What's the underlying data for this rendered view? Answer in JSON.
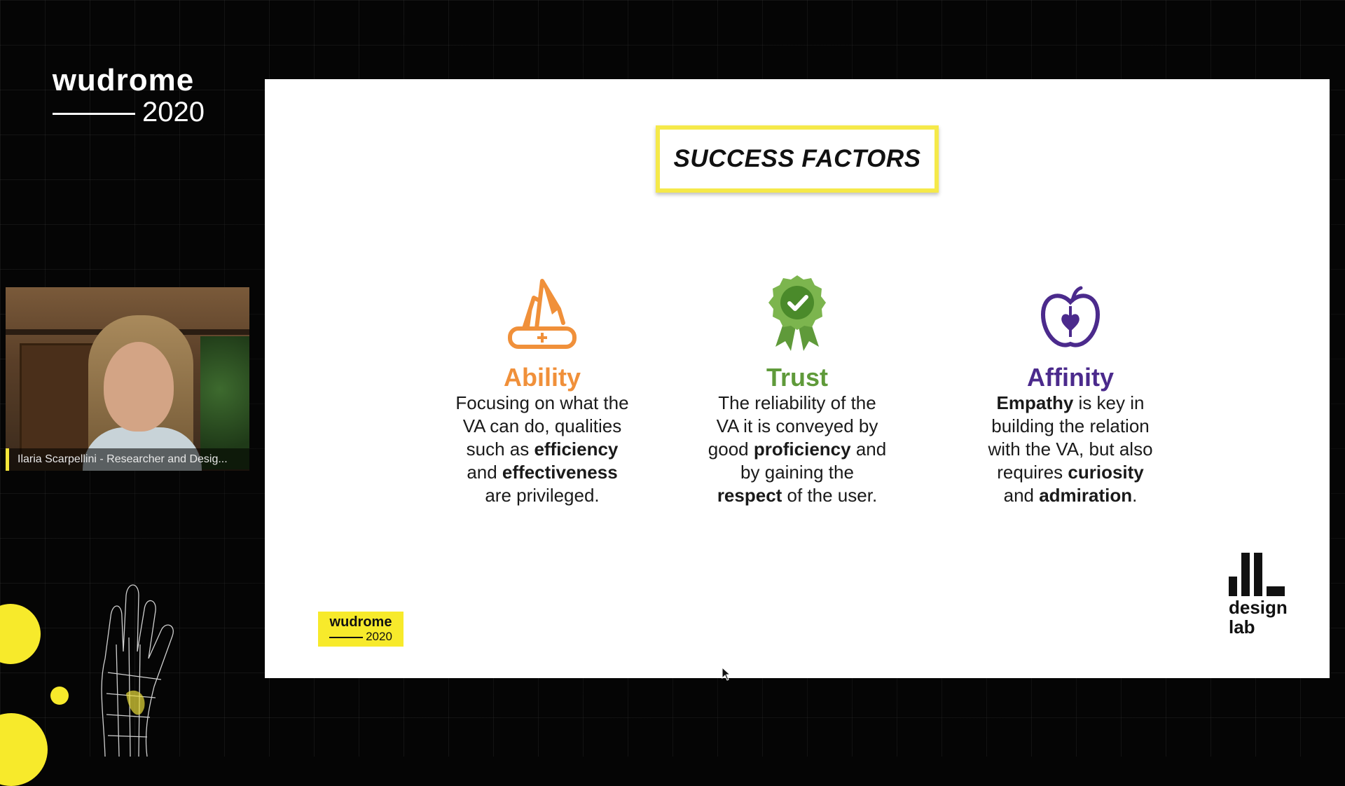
{
  "event": {
    "name": "wudrome",
    "year": "2020"
  },
  "participant": {
    "label": "Ilaria Scarpellini - Researcher and Desig..."
  },
  "slide": {
    "title": "SUCCESS FACTORS",
    "factors": [
      {
        "name": "Ability",
        "color": "#f0903a",
        "icon": "swiss-army-knife-icon",
        "lines": [
          [
            {
              "t": "Focusing on what the",
              "b": false
            }
          ],
          [
            {
              "t": "VA can do, qualities",
              "b": false
            }
          ],
          [
            {
              "t": "such as ",
              "b": false
            },
            {
              "t": "efficiency",
              "b": true
            }
          ],
          [
            {
              "t": "and ",
              "b": false
            },
            {
              "t": "effectiveness",
              "b": true
            }
          ],
          [
            {
              "t": "are privileged.",
              "b": false
            }
          ]
        ]
      },
      {
        "name": "Trust",
        "color": "#5f9a3a",
        "icon": "award-ribbon-check-icon",
        "lines": [
          [
            {
              "t": "The reliability of the",
              "b": false
            }
          ],
          [
            {
              "t": "VA it is conveyed by",
              "b": false
            }
          ],
          [
            {
              "t": "good ",
              "b": false
            },
            {
              "t": "proficiency",
              "b": true
            },
            {
              "t": " and",
              "b": false
            }
          ],
          [
            {
              "t": "by gaining the",
              "b": false
            }
          ],
          [
            {
              "t": "respect",
              "b": true
            },
            {
              "t": " of the user.",
              "b": false
            }
          ]
        ]
      },
      {
        "name": "Affinity",
        "color": "#4b2a8c",
        "icon": "apple-heart-icon",
        "lines": [
          [
            {
              "t": "Empathy",
              "b": true
            },
            {
              "t": " is key in",
              "b": false
            }
          ],
          [
            {
              "t": "building the relation",
              "b": false
            }
          ],
          [
            {
              "t": "with the VA, but also",
              "b": false
            }
          ],
          [
            {
              "t": "requires ",
              "b": false
            },
            {
              "t": "curiosity",
              "b": true
            }
          ],
          [
            {
              "t": "and ",
              "b": false
            },
            {
              "t": "admiration",
              "b": true
            },
            {
              "t": ".",
              "b": false
            }
          ]
        ]
      }
    ],
    "badge": {
      "name": "wudrome",
      "year": "2020"
    },
    "logo": {
      "line1": "design",
      "line2": "lab"
    }
  },
  "colors": {
    "accent_yellow": "#f7ea2b",
    "background": "#050505"
  }
}
